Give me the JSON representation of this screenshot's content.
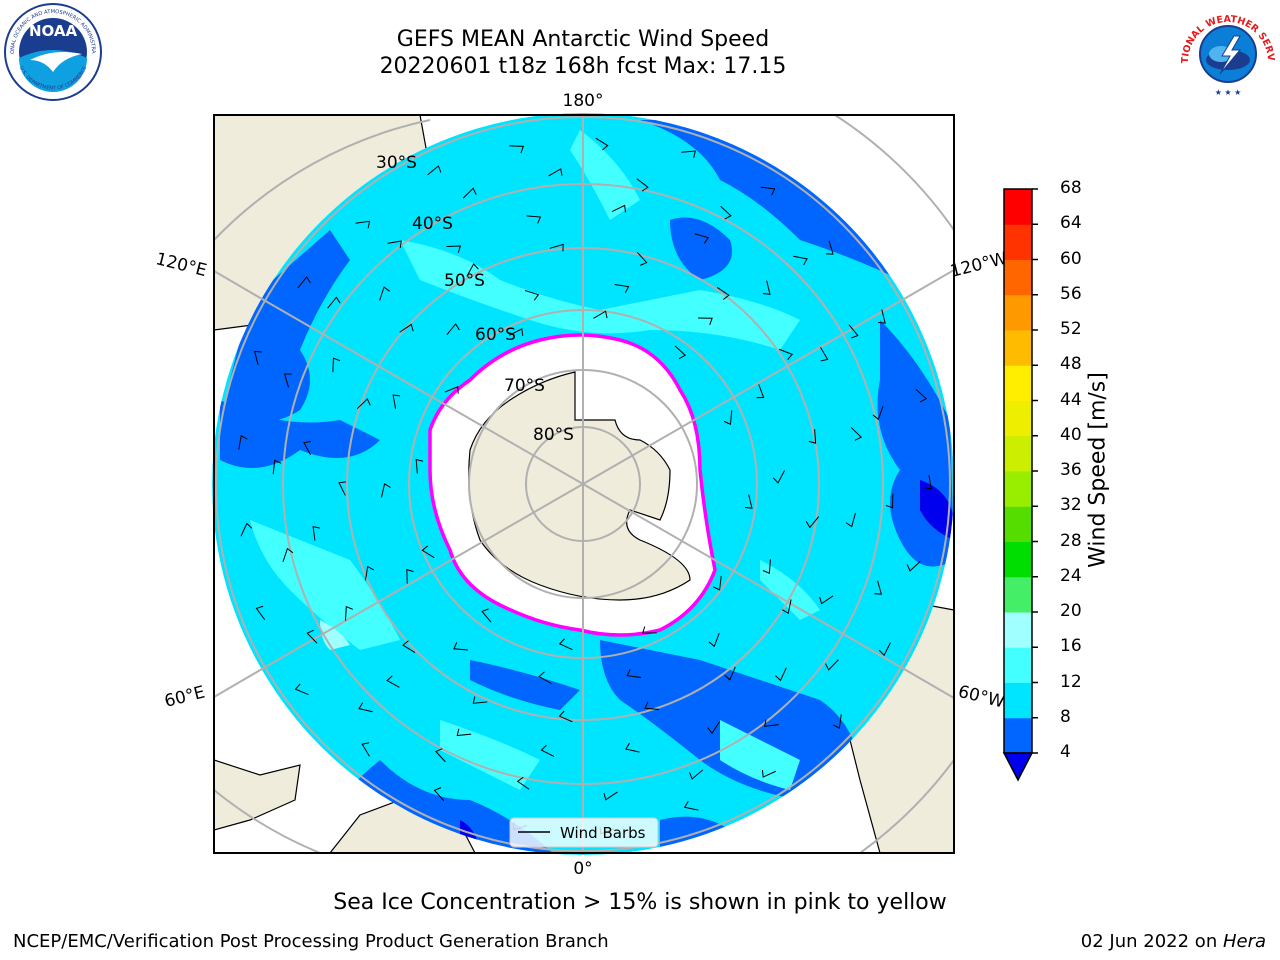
{
  "header": {
    "title_line1": "GEFS MEAN Antarctic Wind Speed",
    "title_line2": "20220601 t18z 168h fcst   Max: 17.15"
  },
  "logos": {
    "left": "noaa-logo",
    "right": "nws-logo",
    "noaa_text": "NOAA",
    "noaa_ring_text": "NATIONAL OCEANIC AND ATMOSPHERIC ADMINISTRATION",
    "noaa_ring_bottom": "U.S. DEPARTMENT OF COMMERCE",
    "nws_ring_text": "NATIONAL WEATHER SERVICE"
  },
  "map": {
    "projection": "south-polar-stereographic",
    "longitude_labels": {
      "top": "180°",
      "bottom": "0°",
      "upper_left": "120°E",
      "upper_right": "120°W",
      "lower_left": "60°E",
      "lower_right": "60°W"
    },
    "latitude_labels": [
      "30°S",
      "40°S",
      "50°S",
      "60°S",
      "70°S",
      "80°S"
    ],
    "legend": {
      "label": "Wind Barbs"
    },
    "sea_ice_colors": [
      "#ff00ff",
      "#ff66cc",
      "#ffb000",
      "#ffd400"
    ],
    "land_color": "#efecdc",
    "antarctica_fill": "#ffffff"
  },
  "colorbar": {
    "title": "Wind Speed [m/s]",
    "ticks": [
      "4",
      "8",
      "12",
      "16",
      "20",
      "24",
      "28",
      "32",
      "36",
      "40",
      "44",
      "48",
      "52",
      "56",
      "60",
      "64",
      "68"
    ],
    "colors": [
      "#0066ff",
      "#00e5ff",
      "#44ffff",
      "#a0ffff",
      "#44ee66",
      "#00dd00",
      "#55dd00",
      "#99ee00",
      "#ccee00",
      "#eeee00",
      "#ffee00",
      "#ffbb00",
      "#ff9900",
      "#ff6600",
      "#ff3300",
      "#ff0000"
    ],
    "under_color": "#0000ee"
  },
  "caption": "Sea Ice Concentration > 15% is shown in pink to yellow",
  "footer": {
    "left": "NCEP/EMC/Verification Post Processing Product Generation Branch",
    "right_date": "02 Jun 2022 on ",
    "right_host": "Hera"
  }
}
